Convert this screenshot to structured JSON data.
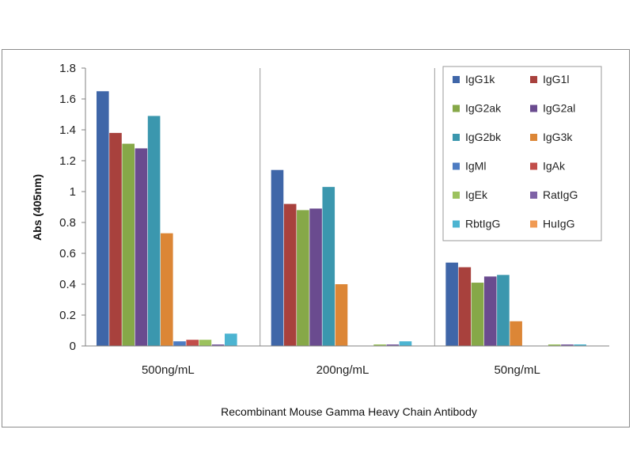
{
  "chart_data": {
    "type": "bar",
    "title": "",
    "xlabel": "Recombinant Mouse Gamma Heavy Chain Antibody",
    "ylabel": "Abs (405nm)",
    "ylim": [
      0,
      1.8
    ],
    "yticks": [
      "0",
      "0.2",
      "0.4",
      "0.6",
      "0.8",
      "1",
      "1.2",
      "1.4",
      "1.6",
      "1.8"
    ],
    "ytick_values": [
      0,
      0.2,
      0.4,
      0.6,
      0.8,
      1.0,
      1.2,
      1.4,
      1.6,
      1.8
    ],
    "grid": false,
    "legend_position": "top-right",
    "categories": [
      "500ng/mL",
      "200ng/mL",
      "50ng/mL"
    ],
    "series": [
      {
        "name": "IgG1k",
        "color": "#3f66a8",
        "values": [
          1.65,
          1.14,
          0.54
        ]
      },
      {
        "name": "IgG1l",
        "color": "#a8413d",
        "values": [
          1.38,
          0.92,
          0.51
        ]
      },
      {
        "name": "IgG2ak",
        "color": "#86a848",
        "values": [
          1.31,
          0.88,
          0.41
        ]
      },
      {
        "name": "IgG2al",
        "color": "#6a4b8f",
        "values": [
          1.28,
          0.89,
          0.45
        ]
      },
      {
        "name": "IgG2bk",
        "color": "#3b97ae",
        "values": [
          1.49,
          1.03,
          0.46
        ]
      },
      {
        "name": "IgG3k",
        "color": "#dc8636",
        "values": [
          0.73,
          0.4,
          0.16
        ]
      },
      {
        "name": "IgMl",
        "color": "#4d7cc2",
        "values": [
          0.03,
          0.0,
          0.0
        ]
      },
      {
        "name": "IgAk",
        "color": "#c24e4a",
        "values": [
          0.04,
          0.0,
          0.0
        ]
      },
      {
        "name": "IgEk",
        "color": "#9cc25e",
        "values": [
          0.04,
          0.01,
          0.01
        ]
      },
      {
        "name": "RatIgG",
        "color": "#7e62a6",
        "values": [
          0.01,
          0.01,
          0.01
        ]
      },
      {
        "name": "RbtIgG",
        "color": "#4cb4d1",
        "values": [
          0.08,
          0.03,
          0.01
        ]
      },
      {
        "name": "HuIgG",
        "color": "#f09a53",
        "values": [
          0.0,
          0.0,
          0.0
        ]
      }
    ]
  }
}
